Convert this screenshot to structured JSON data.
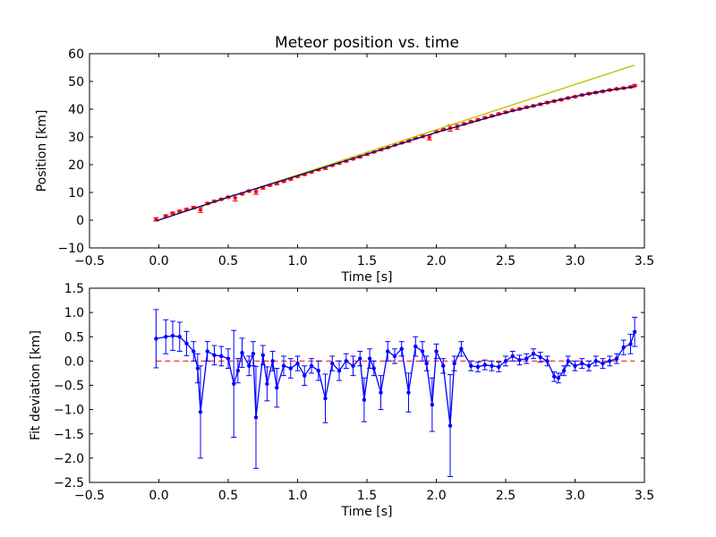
{
  "chart_data": [
    {
      "type": "line",
      "title": "Meteor position vs. time",
      "xlabel": "Time [s]",
      "ylabel": "Position [km]",
      "xlim": [
        -0.5,
        3.5
      ],
      "ylim": [
        -10,
        60
      ],
      "xticks": [
        -0.5,
        0.0,
        0.5,
        1.0,
        1.5,
        2.0,
        2.5,
        3.0,
        3.5
      ],
      "xtick_labels": [
        "−0.5",
        "0.0",
        "0.5",
        "1.0",
        "1.5",
        "2.0",
        "2.5",
        "3.0",
        "3.5"
      ],
      "yticks": [
        -10,
        0,
        10,
        20,
        30,
        40,
        50,
        60
      ],
      "ytick_labels": [
        "−10",
        "0",
        "10",
        "20",
        "30",
        "40",
        "50",
        "60"
      ],
      "grid": false,
      "series": [
        {
          "kind": "errorbar-points",
          "color": "#ff0000",
          "x": [
            -0.02,
            0.05,
            0.1,
            0.15,
            0.2,
            0.25,
            0.3,
            0.35,
            0.4,
            0.45,
            0.5,
            0.55,
            0.6,
            0.65,
            0.7,
            0.75,
            0.8,
            0.85,
            0.9,
            0.95,
            1.0,
            1.05,
            1.1,
            1.15,
            1.2,
            1.25,
            1.3,
            1.35,
            1.4,
            1.45,
            1.5,
            1.55,
            1.6,
            1.65,
            1.7,
            1.75,
            1.8,
            1.85,
            1.9,
            1.95,
            2.0,
            2.05,
            2.1,
            2.15,
            2.2,
            2.25,
            2.3,
            2.35,
            2.4,
            2.45,
            2.5,
            2.55,
            2.6,
            2.65,
            2.7,
            2.75,
            2.8,
            2.85,
            2.9,
            2.95,
            3.0,
            3.05,
            3.1,
            3.15,
            3.2,
            3.25,
            3.3,
            3.35,
            3.4,
            3.43
          ],
          "y": [
            0.3,
            1.5,
            2.5,
            3.2,
            3.9,
            4.5,
            3.8,
            6.0,
            6.8,
            7.5,
            8.3,
            8.0,
            9.5,
            10.5,
            10.3,
            11.7,
            12.6,
            13.2,
            14.0,
            14.8,
            15.8,
            16.5,
            17.4,
            18.2,
            18.8,
            19.8,
            20.6,
            21.3,
            22.1,
            22.8,
            23.8,
            24.6,
            25.5,
            26.2,
            27.1,
            27.9,
            28.6,
            29.6,
            30.3,
            29.8,
            31.9,
            32.7,
            33.2,
            33.6,
            34.7,
            35.5,
            36.2,
            36.9,
            37.6,
            38.3,
            38.9,
            39.6,
            40.1,
            40.7,
            41.2,
            41.8,
            42.4,
            42.9,
            43.4,
            44.0,
            44.5,
            45.1,
            45.6,
            46.0,
            46.4,
            46.9,
            47.3,
            47.6,
            48.0,
            48.5
          ],
          "yerr": [
            0.6,
            0.4,
            0.3,
            0.3,
            0.3,
            0.4,
            1.0,
            0.4,
            0.3,
            0.3,
            0.3,
            1.1,
            0.3,
            0.3,
            1.0,
            0.5,
            0.3,
            0.4,
            0.3,
            0.3,
            0.3,
            0.3,
            0.3,
            0.3,
            0.5,
            0.3,
            0.3,
            0.3,
            0.3,
            0.3,
            0.4,
            0.3,
            0.5,
            0.3,
            0.3,
            0.3,
            0.5,
            0.3,
            0.6,
            0.9,
            0.3,
            0.3,
            1.1,
            0.9,
            0.3,
            0.3,
            0.3,
            0.3,
            0.3,
            0.3,
            0.3,
            0.3,
            0.3,
            0.3,
            0.3,
            0.3,
            0.3,
            0.3,
            0.3,
            0.3,
            0.3,
            0.3,
            0.3,
            0.3,
            0.3,
            0.3,
            0.3,
            0.3,
            0.3,
            0.3
          ]
        },
        {
          "kind": "line",
          "color": "#bfbf00",
          "x": [
            -0.02,
            3.43
          ],
          "y": [
            -0.3,
            55.9
          ]
        },
        {
          "kind": "line",
          "color": "#00008b",
          "x": [
            -0.02,
            0.5,
            1.0,
            1.5,
            2.0,
            2.5,
            2.8,
            3.0,
            3.2,
            3.43
          ],
          "y": [
            -0.3,
            8.3,
            16.0,
            23.8,
            31.6,
            38.7,
            42.4,
            44.6,
            46.5,
            48.1
          ]
        }
      ]
    },
    {
      "type": "line",
      "title": "",
      "xlabel": "Time [s]",
      "ylabel": "Fit deviation [km]",
      "xlim": [
        -0.5,
        3.5
      ],
      "ylim": [
        -2.5,
        1.5
      ],
      "xticks": [
        -0.5,
        0.0,
        0.5,
        1.0,
        1.5,
        2.0,
        2.5,
        3.0,
        3.5
      ],
      "xtick_labels": [
        "−0.5",
        "0.0",
        "0.5",
        "1.0",
        "1.5",
        "2.0",
        "2.5",
        "3.0",
        "3.5"
      ],
      "yticks": [
        -2.5,
        -2.0,
        -1.5,
        -1.0,
        -0.5,
        0.0,
        0.5,
        1.0,
        1.5
      ],
      "ytick_labels": [
        "−2.5",
        "−2.0",
        "−1.5",
        "−1.0",
        "−0.5",
        "0.0",
        "0.5",
        "1.0",
        "1.5"
      ],
      "grid": false,
      "zero_line": {
        "y": 0.0,
        "x": [
          -0.02,
          3.43
        ],
        "color": "#ff0000",
        "style": "dashed"
      },
      "series": [
        {
          "kind": "errorbar-line",
          "color": "#0000ff",
          "x": [
            -0.02,
            0.05,
            0.1,
            0.15,
            0.2,
            0.25,
            0.28,
            0.3,
            0.35,
            0.4,
            0.45,
            0.5,
            0.54,
            0.57,
            0.6,
            0.65,
            0.68,
            0.7,
            0.75,
            0.78,
            0.82,
            0.85,
            0.9,
            0.95,
            1.0,
            1.05,
            1.1,
            1.15,
            1.2,
            1.25,
            1.3,
            1.35,
            1.4,
            1.45,
            1.48,
            1.52,
            1.55,
            1.6,
            1.65,
            1.7,
            1.75,
            1.8,
            1.85,
            1.9,
            1.93,
            1.97,
            2.0,
            2.05,
            2.1,
            2.13,
            2.18,
            2.25,
            2.3,
            2.35,
            2.4,
            2.45,
            2.5,
            2.55,
            2.6,
            2.65,
            2.7,
            2.75,
            2.8,
            2.85,
            2.88,
            2.92,
            2.95,
            3.0,
            3.05,
            3.1,
            3.15,
            3.2,
            3.25,
            3.3,
            3.35,
            3.4,
            3.43
          ],
          "y": [
            0.46,
            0.5,
            0.52,
            0.5,
            0.36,
            0.2,
            -0.15,
            -1.05,
            0.2,
            0.12,
            0.1,
            0.05,
            -0.47,
            -0.2,
            0.17,
            -0.1,
            0.15,
            -1.16,
            0.12,
            -0.47,
            0.0,
            -0.55,
            -0.1,
            -0.15,
            -0.05,
            -0.3,
            -0.1,
            -0.2,
            -0.77,
            -0.05,
            -0.2,
            0.0,
            -0.1,
            0.05,
            -0.8,
            0.05,
            -0.15,
            -0.65,
            0.2,
            0.1,
            0.25,
            -0.65,
            0.3,
            0.2,
            -0.05,
            -0.9,
            0.2,
            -0.1,
            -1.33,
            -0.05,
            0.25,
            -0.1,
            -0.12,
            -0.08,
            -0.1,
            -0.12,
            0.0,
            0.1,
            0.02,
            0.05,
            0.15,
            0.08,
            0.0,
            -0.32,
            -0.35,
            -0.2,
            0.0,
            -0.1,
            -0.05,
            -0.1,
            0.0,
            -0.05,
            0.0,
            0.05,
            0.28,
            0.35,
            0.6
          ],
          "yerr": [
            0.6,
            0.35,
            0.3,
            0.3,
            0.25,
            0.2,
            0.3,
            0.95,
            0.2,
            0.2,
            0.2,
            0.2,
            1.1,
            0.25,
            0.3,
            0.2,
            0.25,
            1.05,
            0.2,
            0.35,
            0.2,
            0.4,
            0.2,
            0.2,
            0.15,
            0.2,
            0.15,
            0.2,
            0.5,
            0.15,
            0.2,
            0.15,
            0.2,
            0.15,
            0.45,
            0.2,
            0.15,
            0.35,
            0.2,
            0.15,
            0.15,
            0.4,
            0.2,
            0.2,
            0.15,
            0.55,
            0.15,
            0.15,
            1.05,
            0.15,
            0.15,
            0.1,
            0.1,
            0.1,
            0.1,
            0.1,
            0.1,
            0.1,
            0.1,
            0.1,
            0.1,
            0.1,
            0.1,
            0.1,
            0.1,
            0.1,
            0.1,
            0.1,
            0.1,
            0.1,
            0.1,
            0.1,
            0.1,
            0.1,
            0.15,
            0.2,
            0.3
          ]
        }
      ]
    }
  ]
}
